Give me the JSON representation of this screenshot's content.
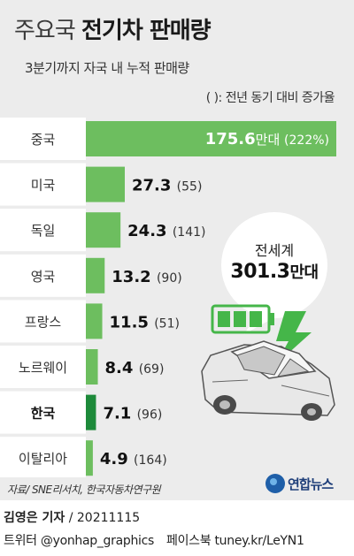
{
  "header": {
    "title_light": "주요국",
    "title_bold": "전기차 판매량",
    "subtitle": "3분기까지 자국 내 누적 판매량",
    "legend_note": "(  ): 전년 동기 대비 증가율"
  },
  "chart_data": {
    "type": "bar",
    "orientation": "horizontal",
    "title": "주요국 전기차 판매량",
    "subtitle": "3분기까지 자국 내 누적 판매량",
    "unit": "만대",
    "categories": [
      "중국",
      "미국",
      "독일",
      "영국",
      "프랑스",
      "노르웨이",
      "한국",
      "이탈리아"
    ],
    "values": [
      175.6,
      27.3,
      24.3,
      13.2,
      11.5,
      8.4,
      7.1,
      4.9
    ],
    "growth_pct": [
      222,
      55,
      141,
      90,
      51,
      69,
      96,
      164
    ],
    "value_labels": [
      "175.6",
      "27.3",
      "24.3",
      "13.2",
      "11.5",
      "8.4",
      "7.1",
      "4.9"
    ],
    "growth_labels": [
      "(222%)",
      "(55)",
      "(141)",
      "(90)",
      "(51)",
      "(69)",
      "(96)",
      "(164)"
    ],
    "first_bar_unit": "만대",
    "highlight_category": "한국",
    "colors": {
      "bar": "#6dbe5f",
      "highlight": "#1d8a3a",
      "bubble": "#ffffff",
      "bolt": "#45b649"
    }
  },
  "callout": {
    "label": "전세계",
    "value": "301.3",
    "unit": "만대"
  },
  "footer": {
    "source": "자료/ SNE리서치, 한국자동차연구원",
    "logo_text": "연합뉴스",
    "byline_name": "김영은 기자",
    "byline_date": " / 20211115",
    "social_twitter": "트위터 @yonhap_graphics",
    "social_facebook": "페이스북 tuney.kr/LeYN1"
  }
}
